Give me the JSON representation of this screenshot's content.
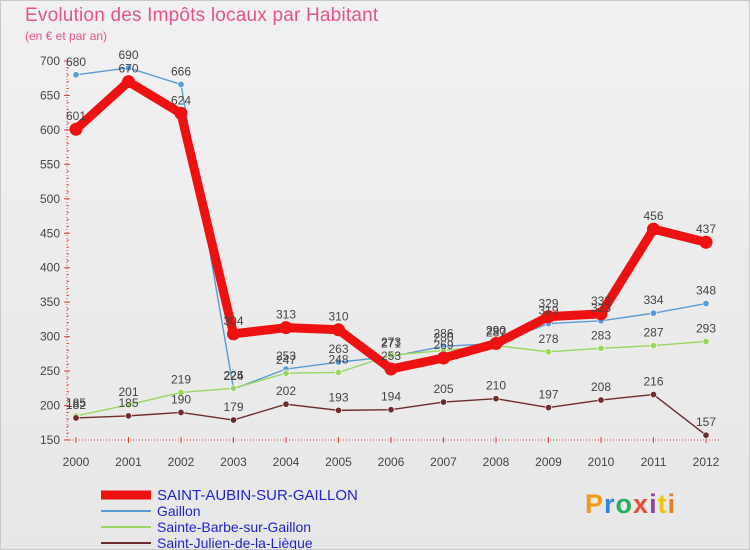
{
  "header": {
    "title": "Evolution des Impôts locaux par Habitant",
    "subtitle": "(en € et par an)"
  },
  "logo": {
    "letters": [
      "P",
      "r",
      "o",
      "x",
      "i",
      "t",
      "i"
    ],
    "colors": [
      "#f39c12",
      "#2e86de",
      "#27ae60",
      "#e74c3c",
      "#8e44ad",
      "#f1c40f",
      "#e67e22"
    ]
  },
  "chart_data": {
    "type": "line",
    "title": "Evolution des Impôts locaux par Habitant",
    "subtitle": "(en € et par an)",
    "xlabel": "",
    "ylabel": "",
    "ylim": [
      150,
      700
    ],
    "yticks": [
      150,
      200,
      250,
      300,
      350,
      400,
      450,
      500,
      550,
      600,
      650,
      700
    ],
    "grid": false,
    "legend_position": "bottom-left",
    "categories": [
      "2000",
      "2001",
      "2002",
      "2003",
      "2004",
      "2005",
      "2006",
      "2007",
      "2008",
      "2009",
      "2010",
      "2011",
      "2012"
    ],
    "series": [
      {
        "name": "Gaillon",
        "color": "#5b9bd5",
        "values": [
          680,
          690,
          666,
          224,
          253,
          263,
          271,
          286,
          290,
          319,
          323,
          334,
          348
        ]
      },
      {
        "name": "Sainte-Barbe-sur-Gaillon",
        "color": "#9ad660",
        "values": [
          185,
          201,
          219,
          225,
          247,
          248,
          273,
          280,
          287,
          278,
          283,
          287,
          293
        ]
      },
      {
        "name": "Saint-Julien-de-la-Liègue",
        "color": "#6e2c2c",
        "values": [
          182,
          185,
          190,
          179,
          202,
          193,
          194,
          205,
          210,
          197,
          208,
          216,
          157
        ]
      },
      {
        "name": "SAINT-AUBIN-SUR-GAILLON",
        "color": "#ee1111",
        "values": [
          601,
          670,
          624,
          304,
          313,
          310,
          253,
          269,
          290,
          329,
          333,
          456,
          437
        ]
      }
    ]
  }
}
